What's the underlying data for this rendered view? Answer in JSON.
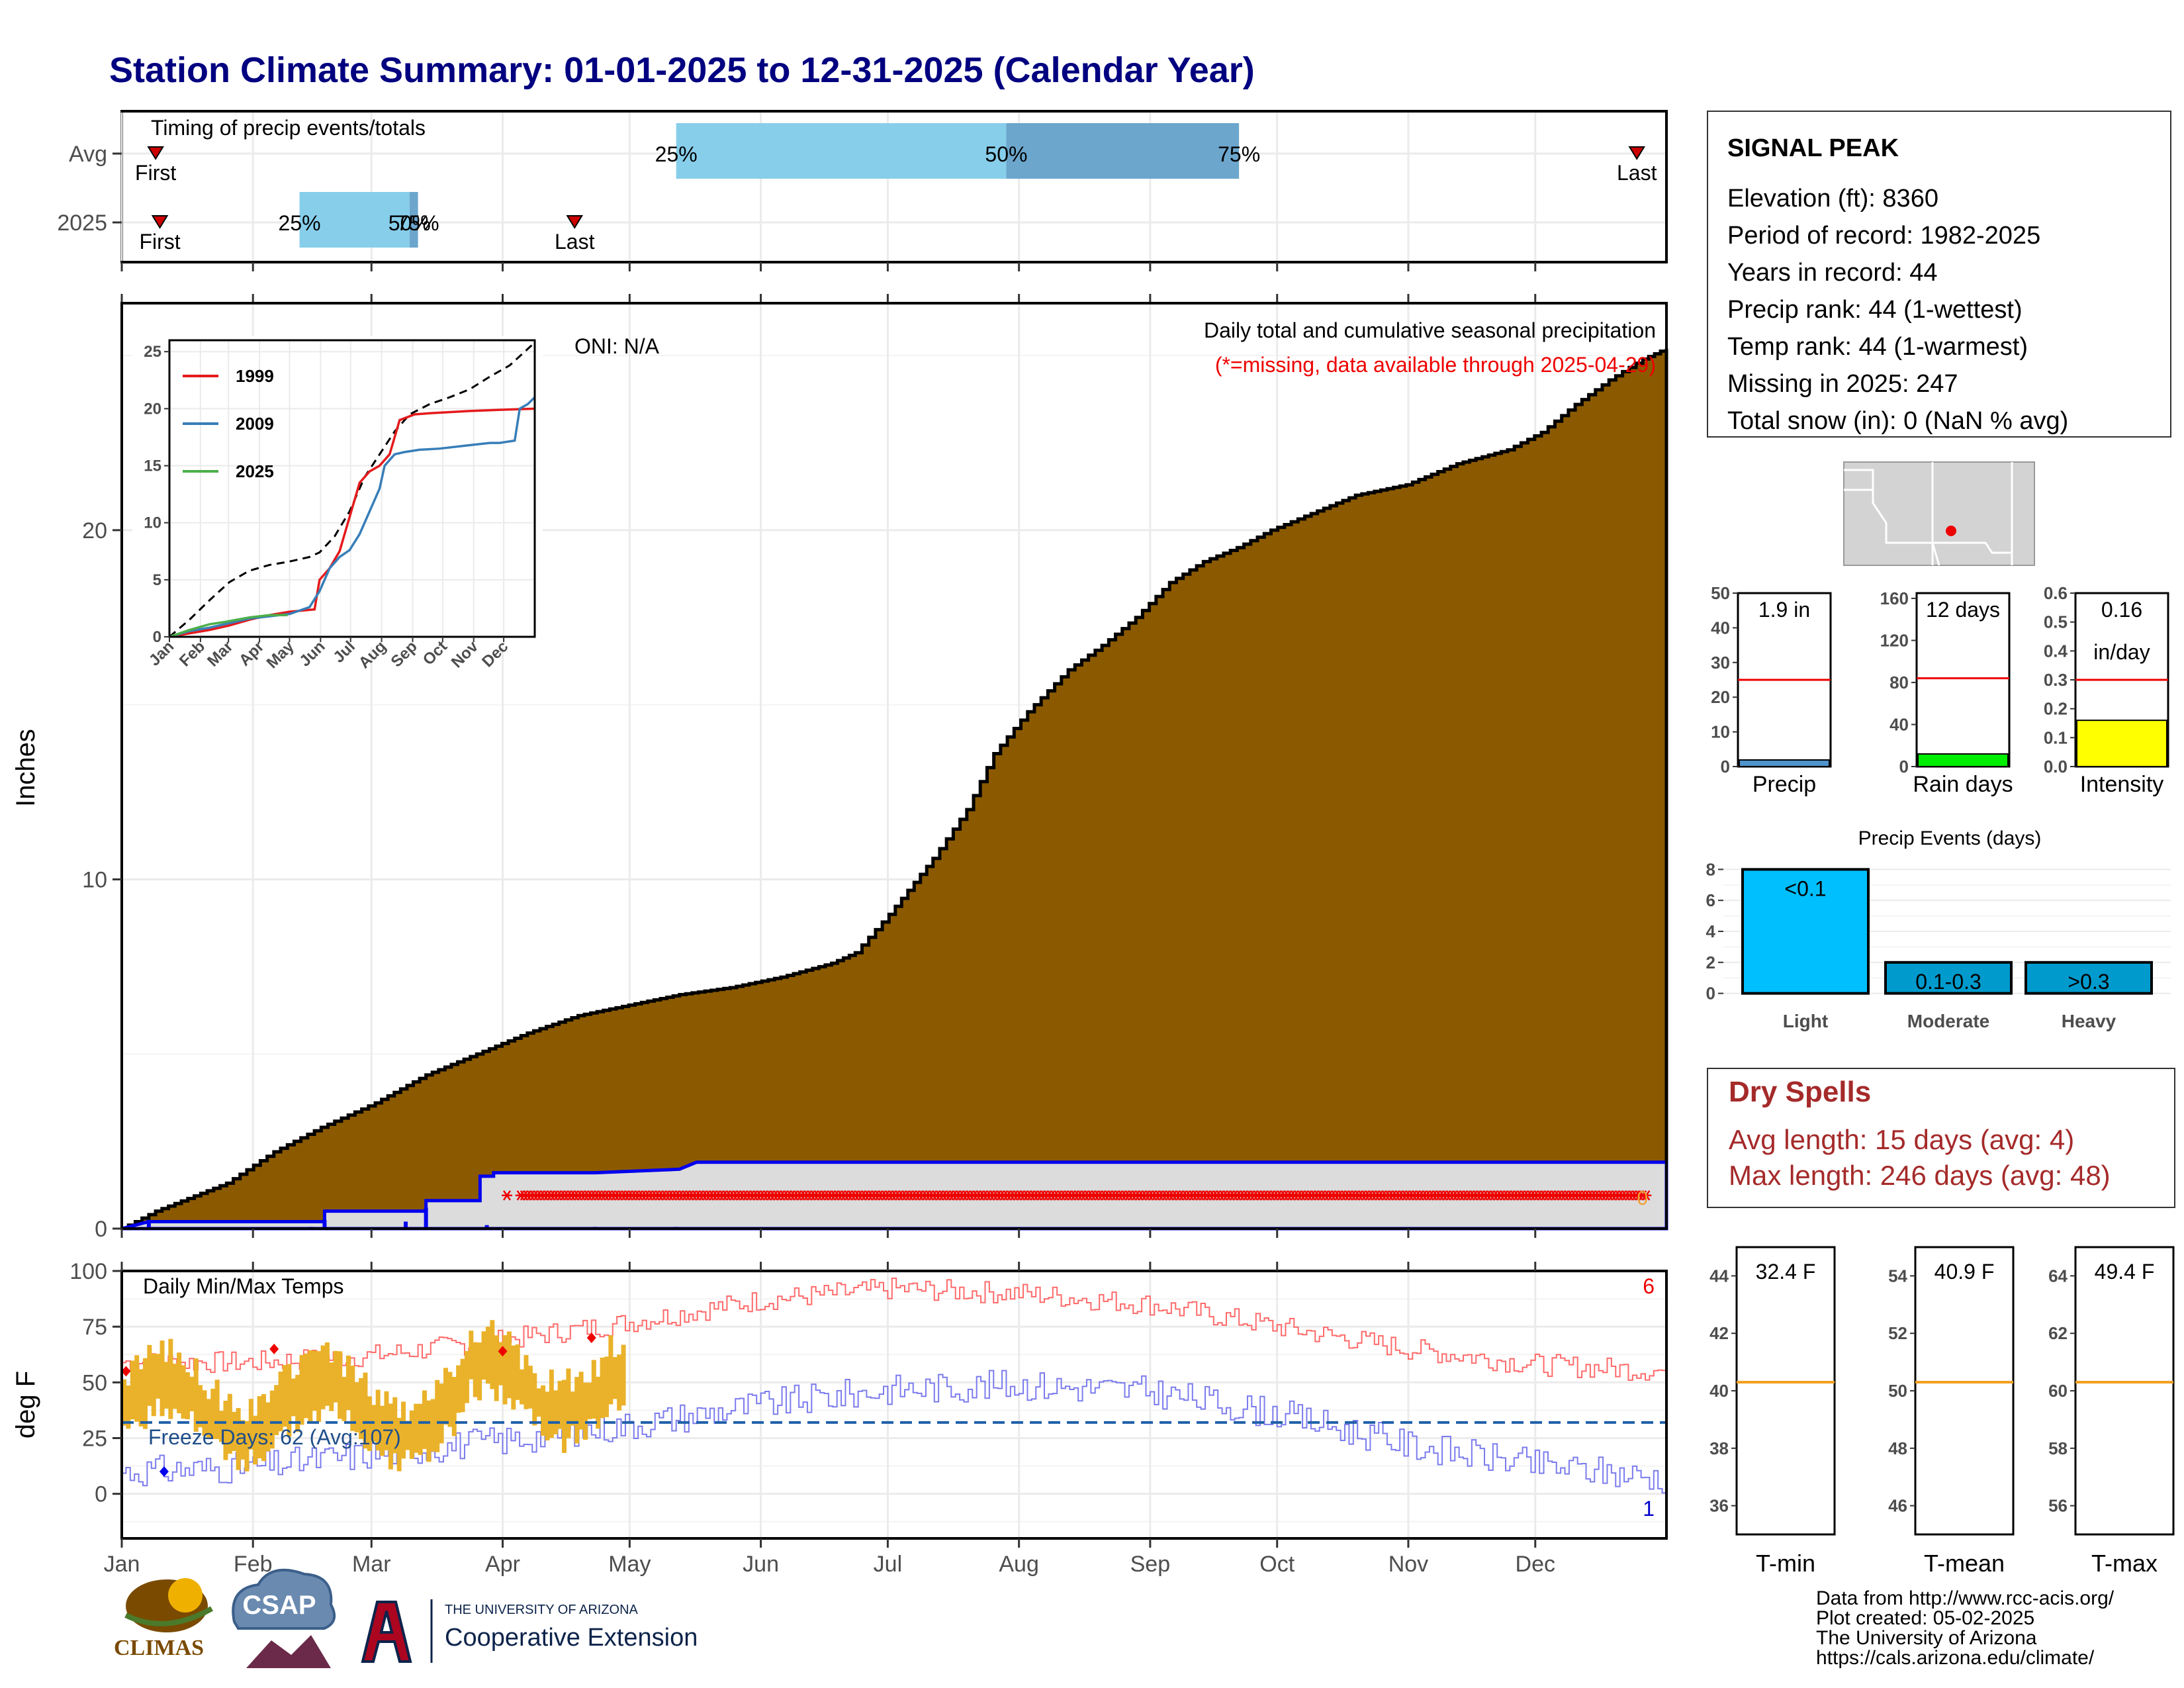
{
  "title": "Station Climate Summary: 01-01-2025 to 12-31-2025 (Calendar Year)",
  "months": [
    "Jan",
    "Feb",
    "Mar",
    "Apr",
    "May",
    "Jun",
    "Jul",
    "Aug",
    "Sep",
    "Oct",
    "Nov",
    "Dec"
  ],
  "timing": {
    "label": "Timing of precip events/totals",
    "rows": [
      {
        "name": "Avg",
        "first_day": 8,
        "last_day": 358,
        "p25_day": 131,
        "p50_day": 209,
        "p75_day": 264
      },
      {
        "name": "2025",
        "first_day": 9,
        "last_day": 107,
        "p25_day": 42,
        "p50_day": 68,
        "p75_day": 70
      }
    ],
    "first_label": "First",
    "last_label": "Last",
    "pct_labels": [
      "25%",
      "50%",
      "75%"
    ]
  },
  "precip": {
    "ylabel": "Inches",
    "yticks": [
      0,
      10,
      20
    ],
    "ylim": [
      0,
      26.5
    ],
    "oni": "ONI: N/A",
    "caption": "Daily total and cumulative seasonal precipitation",
    "missing_note": "(*=missing, data available through 2025-04-29)",
    "end_marker": "0",
    "avg_cumulative": [
      [
        0,
        0
      ],
      [
        10,
        0.5
      ],
      [
        31,
        1.3
      ],
      [
        45,
        2.2
      ],
      [
        59,
        2.9
      ],
      [
        75,
        3.6
      ],
      [
        90,
        4.4
      ],
      [
        105,
        5.0
      ],
      [
        120,
        5.6
      ],
      [
        135,
        6.1
      ],
      [
        150,
        6.4
      ],
      [
        165,
        6.7
      ],
      [
        180,
        6.9
      ],
      [
        195,
        7.2
      ],
      [
        210,
        7.6
      ],
      [
        217,
        7.9
      ],
      [
        227,
        9.0
      ],
      [
        240,
        10.6
      ],
      [
        250,
        12.0
      ],
      [
        258,
        13.6
      ],
      [
        268,
        14.8
      ],
      [
        280,
        16.0
      ],
      [
        290,
        16.7
      ],
      [
        300,
        17.5
      ],
      [
        310,
        18.5
      ],
      [
        320,
        19.1
      ],
      [
        330,
        19.5
      ],
      [
        340,
        20.0
      ],
      [
        350,
        20.4
      ],
      [
        365,
        21.0
      ],
      [
        380,
        21.3
      ],
      [
        395,
        21.9
      ],
      [
        410,
        22.3
      ],
      [
        420,
        22.8
      ],
      [
        430,
        23.6
      ],
      [
        440,
        24.3
      ],
      [
        450,
        24.9
      ],
      [
        457,
        25.2
      ]
    ],
    "cum_2025_max_line": [
      [
        0,
        0
      ],
      [
        8,
        0.2
      ],
      [
        60,
        0.2
      ],
      [
        60,
        0.5
      ],
      [
        90,
        0.5
      ],
      [
        90,
        0.8
      ],
      [
        106,
        0.8
      ],
      [
        106,
        1.5
      ],
      [
        110,
        1.5
      ],
      [
        110,
        1.6
      ],
      [
        140,
        1.6
      ],
      [
        165,
        1.7
      ],
      [
        170,
        1.9
      ],
      [
        457,
        1.9
      ]
    ],
    "missing_start_day": 118,
    "missing_single_day": 112
  },
  "inset": {
    "yticks": [
      0,
      5,
      10,
      15,
      20,
      25
    ],
    "ylim": [
      0,
      26
    ],
    "series": [
      {
        "name": "1999",
        "color": "#e41a1c",
        "values": [
          [
            0,
            0
          ],
          [
            20,
            0.3
          ],
          [
            40,
            0.6
          ],
          [
            60,
            1.0
          ],
          [
            80,
            1.5
          ],
          [
            100,
            1.9
          ],
          [
            120,
            2.2
          ],
          [
            145,
            2.4
          ],
          [
            150,
            5.0
          ],
          [
            160,
            6.0
          ],
          [
            170,
            7.5
          ],
          [
            180,
            10.5
          ],
          [
            190,
            13.5
          ],
          [
            200,
            14.5
          ],
          [
            210,
            15.0
          ],
          [
            220,
            16.0
          ],
          [
            230,
            19.0
          ],
          [
            245,
            19.5
          ],
          [
            260,
            19.6
          ],
          [
            300,
            19.8
          ],
          [
            330,
            19.9
          ],
          [
            365,
            20.0
          ]
        ]
      },
      {
        "name": "2009",
        "color": "#377eb8",
        "values": [
          [
            0,
            0
          ],
          [
            20,
            0.5
          ],
          [
            40,
            0.8
          ],
          [
            60,
            1.2
          ],
          [
            80,
            1.6
          ],
          [
            100,
            1.8
          ],
          [
            120,
            2.0
          ],
          [
            140,
            2.6
          ],
          [
            150,
            4.0
          ],
          [
            160,
            6.0
          ],
          [
            170,
            7.0
          ],
          [
            180,
            7.6
          ],
          [
            190,
            9.0
          ],
          [
            200,
            11.0
          ],
          [
            210,
            13.0
          ],
          [
            215,
            15.0
          ],
          [
            225,
            16.0
          ],
          [
            235,
            16.2
          ],
          [
            250,
            16.4
          ],
          [
            270,
            16.5
          ],
          [
            300,
            16.8
          ],
          [
            320,
            17.0
          ],
          [
            330,
            17.0
          ],
          [
            345,
            17.2
          ],
          [
            350,
            20.0
          ],
          [
            358,
            20.4
          ],
          [
            365,
            21.0
          ]
        ]
      },
      {
        "name": "2025",
        "color": "#4daf4a",
        "values": [
          [
            0,
            0
          ],
          [
            20,
            0.6
          ],
          [
            40,
            1.1
          ],
          [
            55,
            1.3
          ],
          [
            80,
            1.7
          ],
          [
            100,
            1.9
          ],
          [
            118,
            1.9
          ]
        ]
      }
    ],
    "avg_values": [
      [
        0,
        0
      ],
      [
        20,
        1.5
      ],
      [
        40,
        3.2
      ],
      [
        60,
        4.8
      ],
      [
        80,
        5.8
      ],
      [
        100,
        6.3
      ],
      [
        120,
        6.6
      ],
      [
        140,
        7.0
      ],
      [
        150,
        7.4
      ],
      [
        165,
        8.8
      ],
      [
        180,
        11.0
      ],
      [
        195,
        14.0
      ],
      [
        210,
        16.0
      ],
      [
        225,
        18.0
      ],
      [
        240,
        19.5
      ],
      [
        260,
        20.4
      ],
      [
        280,
        21.0
      ],
      [
        300,
        21.7
      ],
      [
        320,
        22.8
      ],
      [
        340,
        23.8
      ],
      [
        365,
        25.8
      ]
    ]
  },
  "temps": {
    "ylabel": "deg F",
    "label": "Daily Min/Max Temps",
    "yticks": [
      0,
      25,
      50,
      75,
      100
    ],
    "ylim": [
      -20,
      100
    ],
    "freeze_label": "Freeze Days: 62 (Avg:107)",
    "freeze_line": 32,
    "record_high_count": "6",
    "record_low_count": "1",
    "avg_max": [
      [
        0,
        59
      ],
      [
        31,
        59
      ],
      [
        59,
        62
      ],
      [
        90,
        69
      ],
      [
        120,
        77
      ],
      [
        151,
        87
      ],
      [
        182,
        92
      ],
      [
        212,
        90
      ],
      [
        243,
        85
      ],
      [
        273,
        75
      ],
      [
        304,
        65
      ],
      [
        334,
        58
      ],
      [
        365,
        55
      ]
    ],
    "avg_min": [
      [
        0,
        10
      ],
      [
        31,
        12
      ],
      [
        59,
        18
      ],
      [
        90,
        24
      ],
      [
        120,
        31
      ],
      [
        151,
        40
      ],
      [
        182,
        47
      ],
      [
        212,
        49
      ],
      [
        243,
        46
      ],
      [
        273,
        36
      ],
      [
        304,
        22
      ],
      [
        334,
        13
      ],
      [
        365,
        7
      ]
    ],
    "record_high_days": [
      [
        1,
        55
      ],
      [
        36,
        65
      ],
      [
        90,
        64
      ],
      [
        111,
        70
      ]
    ],
    "record_low_days": [
      [
        10,
        10
      ]
    ]
  },
  "station": {
    "name": "SIGNAL PEAK",
    "lines": [
      "Elevation (ft): 8360",
      "Period of record: 1982-2025",
      "Years in record: 44",
      "Precip rank: 44 (1-wettest)",
      "Temp rank: 44 (1-warmest)",
      "Missing in 2025: 247",
      "Total snow (in): 0 (NaN % avg)"
    ]
  },
  "summary_bars": [
    {
      "label": "Precip",
      "value_text": "1.9 in",
      "value": 1.9,
      "avg": 25,
      "yticks": [
        0,
        10,
        20,
        30,
        40,
        50
      ],
      "ymax": 50,
      "color": "#4f94cd"
    },
    {
      "label": "Rain days",
      "value_text": "12 days",
      "value": 12,
      "avg": 84,
      "yticks": [
        0,
        40,
        80,
        120,
        160
      ],
      "ymax": 165,
      "color": "#00ee00"
    },
    {
      "label": "Intensity",
      "value_text": "0.16",
      "value_text2": "in/day",
      "value": 0.16,
      "avg": 0.3,
      "yticks": [
        0.0,
        0.1,
        0.2,
        0.3,
        0.4,
        0.5,
        0.6
      ],
      "ymax": 0.6,
      "color": "#ffff00"
    }
  ],
  "events": {
    "title": "Precip Events (days)",
    "yticks": [
      0,
      2,
      4,
      6,
      8
    ],
    "categories": [
      "Light",
      "Moderate",
      "Heavy"
    ],
    "bar_labels": [
      "<0.1",
      "0.1-0.3",
      ">0.3"
    ],
    "values": [
      8,
      2,
      2
    ],
    "colors": [
      "#00bfff",
      "#009acd",
      "#009acd"
    ]
  },
  "dry_spells": {
    "title": "Dry Spells",
    "lines": [
      "Avg length: 15 days (avg: 4)",
      "Max length: 246 days (avg: 48)"
    ]
  },
  "temp_boxes": [
    {
      "label": "T-min",
      "value_text": "32.4 F",
      "value": 32.4,
      "avg": 40.3,
      "yticks": [
        36,
        38,
        40,
        42,
        44
      ],
      "ylim": [
        35,
        45
      ]
    },
    {
      "label": "T-mean",
      "value_text": "40.9 F",
      "value": 40.9,
      "avg": 50.3,
      "yticks": [
        46,
        48,
        50,
        52,
        54
      ],
      "ylim": [
        45,
        55
      ]
    },
    {
      "label": "T-max",
      "value_text": "49.4 F",
      "value": 49.4,
      "avg": 60.3,
      "yticks": [
        56,
        58,
        60,
        62,
        64
      ],
      "ylim": [
        55,
        65
      ]
    }
  ],
  "footer": {
    "lines": [
      "Data from http://www.rcc-acis.org/",
      "Plot created: 05-02-2025",
      "The University of Arizona",
      "https://cals.arizona.edu/climate/"
    ],
    "logos": {
      "climas": "CLIMAS",
      "csap": "CSAP",
      "ua_small": "THE UNIVERSITY OF ARIZONA",
      "ua_big": "Cooperative Extension"
    }
  }
}
